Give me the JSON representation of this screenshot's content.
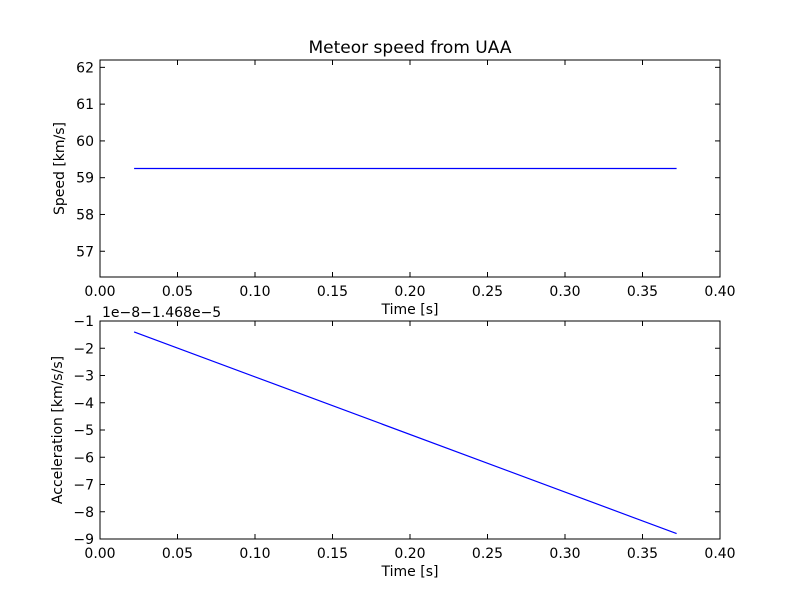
{
  "chart_data": [
    {
      "type": "line",
      "title": "Meteor speed from  UAA",
      "xlabel": "Time [s]",
      "ylabel": "Speed [km/s]",
      "xlim": [
        0.0,
        0.4
      ],
      "ylim": [
        56.3,
        62.2
      ],
      "xticks": [
        0.0,
        0.05,
        0.1,
        0.15,
        0.2,
        0.25,
        0.3,
        0.35,
        0.4
      ],
      "xtick_labels": [
        "0.00",
        "0.05",
        "0.10",
        "0.15",
        "0.20",
        "0.25",
        "0.30",
        "0.35",
        "0.40"
      ],
      "yticks": [
        57,
        58,
        59,
        60,
        61,
        62
      ],
      "ytick_labels": [
        "57",
        "58",
        "59",
        "60",
        "61",
        "62"
      ],
      "series": [
        {
          "color": "#0000ff",
          "x": [
            0.022,
            0.372
          ],
          "y": [
            59.25,
            59.25
          ]
        }
      ],
      "grid": false
    },
    {
      "type": "line",
      "title": "",
      "xlabel": "Time [s]",
      "ylabel": "Acceleration [km/s/s]",
      "offset_label": "1e−8−1.468e−5",
      "xlim": [
        0.0,
        0.4
      ],
      "ylim": [
        -9,
        -1
      ],
      "xticks": [
        0.0,
        0.05,
        0.1,
        0.15,
        0.2,
        0.25,
        0.3,
        0.35,
        0.4
      ],
      "xtick_labels": [
        "0.00",
        "0.05",
        "0.10",
        "0.15",
        "0.20",
        "0.25",
        "0.30",
        "0.35",
        "0.40"
      ],
      "yticks": [
        -9,
        -8,
        -7,
        -6,
        -5,
        -4,
        -3,
        -2,
        -1
      ],
      "ytick_labels": [
        "−9",
        "−8",
        "−7",
        "−6",
        "−5",
        "−4",
        "−3",
        "−2",
        "−1"
      ],
      "series": [
        {
          "color": "#0000ff",
          "x": [
            0.022,
            0.372
          ],
          "y": [
            -1.4,
            -8.8
          ]
        }
      ],
      "grid": false
    }
  ]
}
